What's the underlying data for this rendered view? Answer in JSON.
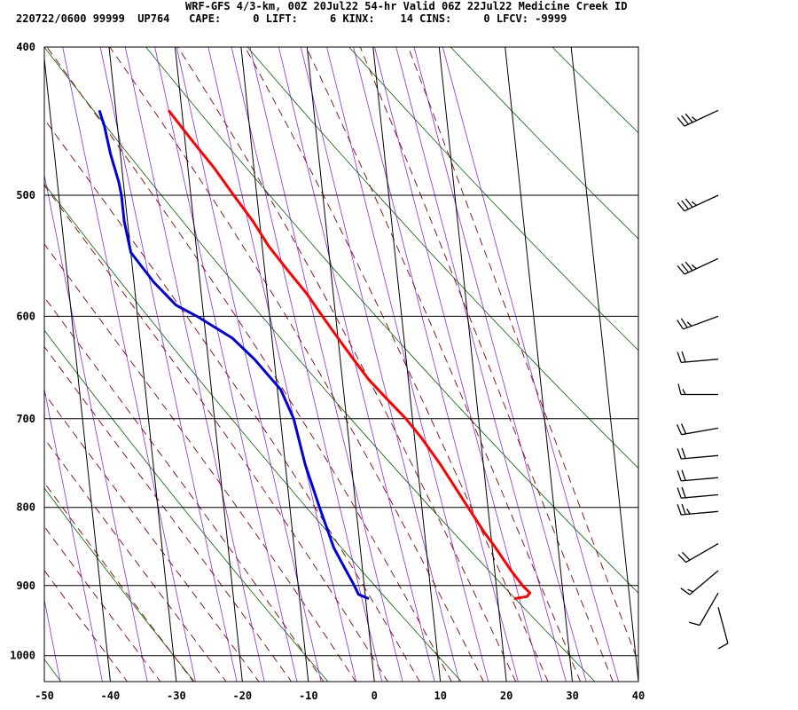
{
  "header": {
    "title": "WRF-GFS 4/3-km, 00Z 20Jul22 54-hr Valid 06Z 22Jul22 Medicine Creek ID",
    "stats": "220722/0600 99999  UP764   CAPE:     0 LIFT:     6 KINX:    14 CINS:     0 LFCV: -9999"
  },
  "chart_data": {
    "type": "line",
    "skewt": true,
    "xlim": [
      -50,
      40
    ],
    "ylim": [
      1040,
      400
    ],
    "yscale": "log",
    "x_ticks": [
      -50,
      -40,
      -30,
      -20,
      -10,
      0,
      10,
      20,
      30,
      40
    ],
    "y_ticks": [
      400,
      500,
      600,
      700,
      800,
      900,
      1000
    ],
    "grid": true,
    "colors": {
      "temperature": "#ff0000",
      "dewpoint": "#0000dd",
      "dry_adiabat": "#006400",
      "moist_adiabat": "#8b0000",
      "isohume": "#8a2be2",
      "grid": "#000000"
    },
    "series": [
      {
        "key": "temperature",
        "values": [
          [
            918,
            22.5
          ],
          [
            915,
            24.5
          ],
          [
            910,
            25.0
          ],
          [
            900,
            24.0
          ],
          [
            880,
            22.5
          ],
          [
            850,
            20.5
          ],
          [
            830,
            19.0
          ],
          [
            800,
            17.0
          ],
          [
            750,
            13.5
          ],
          [
            720,
            11.0
          ],
          [
            700,
            9.0
          ],
          [
            680,
            6.5
          ],
          [
            660,
            4.0
          ],
          [
            640,
            2.0
          ],
          [
            620,
            0.0
          ],
          [
            600,
            -2.0
          ],
          [
            580,
            -4.0
          ],
          [
            560,
            -6.5
          ],
          [
            540,
            -9.0
          ],
          [
            520,
            -11.0
          ],
          [
            500,
            -13.5
          ],
          [
            480,
            -16.0
          ],
          [
            460,
            -19.0
          ],
          [
            440,
            -22.0
          ]
        ]
      },
      {
        "key": "dewpoint",
        "values": [
          [
            918,
            0.5
          ],
          [
            912,
            -1.0
          ],
          [
            900,
            -1.5
          ],
          [
            870,
            -3.0
          ],
          [
            850,
            -4.0
          ],
          [
            800,
            -5.5
          ],
          [
            750,
            -7.0
          ],
          [
            700,
            -8.0
          ],
          [
            670,
            -9.5
          ],
          [
            640,
            -13.0
          ],
          [
            620,
            -16.0
          ],
          [
            600,
            -21.0
          ],
          [
            590,
            -24.0
          ],
          [
            570,
            -27.0
          ],
          [
            545,
            -30.0
          ],
          [
            520,
            -30.5
          ],
          [
            500,
            -30.5
          ],
          [
            490,
            -30.7
          ],
          [
            470,
            -31.5
          ],
          [
            450,
            -32.0
          ],
          [
            440,
            -32.5
          ]
        ]
      }
    ],
    "wind_barbs": [
      {
        "p": 440,
        "dir": 245,
        "spd": 35
      },
      {
        "p": 500,
        "dir": 245,
        "spd": 35
      },
      {
        "p": 550,
        "dir": 245,
        "spd": 35
      },
      {
        "p": 600,
        "dir": 250,
        "spd": 25
      },
      {
        "p": 640,
        "dir": 265,
        "spd": 20
      },
      {
        "p": 675,
        "dir": 270,
        "spd": 15
      },
      {
        "p": 710,
        "dir": 260,
        "spd": 20
      },
      {
        "p": 740,
        "dir": 265,
        "spd": 20
      },
      {
        "p": 765,
        "dir": 265,
        "spd": 20
      },
      {
        "p": 785,
        "dir": 265,
        "spd": 20
      },
      {
        "p": 805,
        "dir": 265,
        "spd": 25
      },
      {
        "p": 845,
        "dir": 240,
        "spd": 20
      },
      {
        "p": 880,
        "dir": 230,
        "spd": 15
      },
      {
        "p": 910,
        "dir": 210,
        "spd": 10
      },
      {
        "p": 930,
        "dir": 165,
        "spd": 10
      }
    ]
  }
}
